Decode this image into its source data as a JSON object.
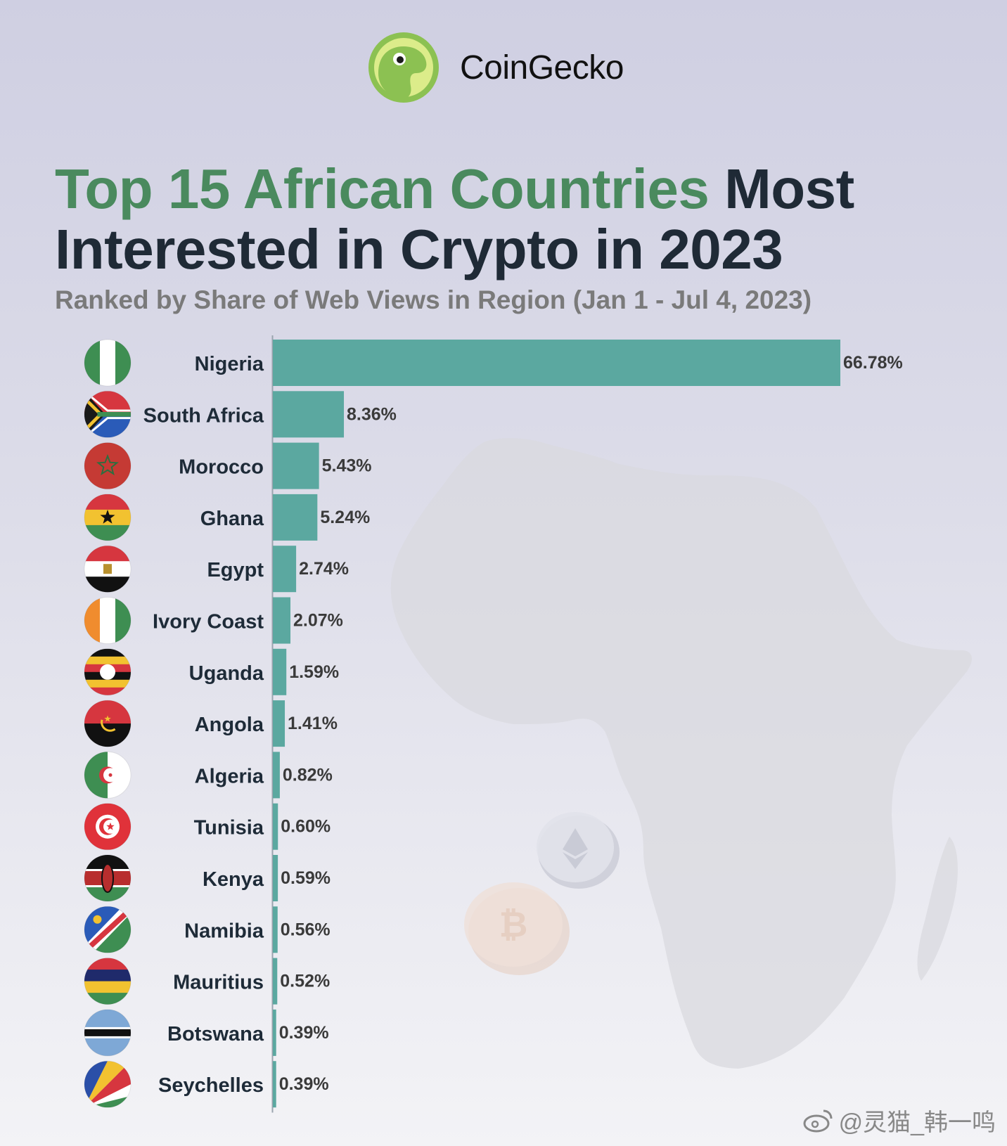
{
  "brand": {
    "name": "CoinGecko",
    "logo_icon": "gecko-logo-icon"
  },
  "title": {
    "highlight": "Top 15 African Countries",
    "rest": "Most Interested in Crypto in 2023"
  },
  "subtitle": "Ranked by Share of Web Views in Region (Jan 1 - Jul 4, 2023)",
  "watermark": "@灵猫_韩一鸣",
  "colors": {
    "bar": "#5ba8a0",
    "title_highlight": "#4a8a5e",
    "title": "#1f2a36",
    "label": "#1e2b38",
    "value": "#3a3a3a"
  },
  "chart_data": {
    "type": "bar",
    "orientation": "horizontal",
    "categories": [
      "Nigeria",
      "South Africa",
      "Morocco",
      "Ghana",
      "Egypt",
      "Ivory Coast",
      "Uganda",
      "Angola",
      "Algeria",
      "Tunisia",
      "Kenya",
      "Namibia",
      "Mauritius",
      "Botswana",
      "Seychelles"
    ],
    "values": [
      66.78,
      8.36,
      5.43,
      5.24,
      2.74,
      2.07,
      1.59,
      1.41,
      0.82,
      0.6,
      0.59,
      0.56,
      0.52,
      0.39,
      0.39
    ],
    "value_labels": [
      "66.78%",
      "8.36%",
      "5.43%",
      "5.24%",
      "2.74%",
      "2.07%",
      "1.59%",
      "1.41%",
      "0.82%",
      "0.60%",
      "0.59%",
      "0.56%",
      "0.52%",
      "0.39%",
      "0.39%"
    ],
    "flag_icons": [
      "nigeria-flag-icon",
      "south-africa-flag-icon",
      "morocco-flag-icon",
      "ghana-flag-icon",
      "egypt-flag-icon",
      "ivory-coast-flag-icon",
      "uganda-flag-icon",
      "angola-flag-icon",
      "algeria-flag-icon",
      "tunisia-flag-icon",
      "kenya-flag-icon",
      "namibia-flag-icon",
      "mauritius-flag-icon",
      "botswana-flag-icon",
      "seychelles-flag-icon"
    ],
    "unit": "%",
    "xlim": [
      0,
      66.78
    ],
    "grid": false,
    "legend": "none"
  }
}
